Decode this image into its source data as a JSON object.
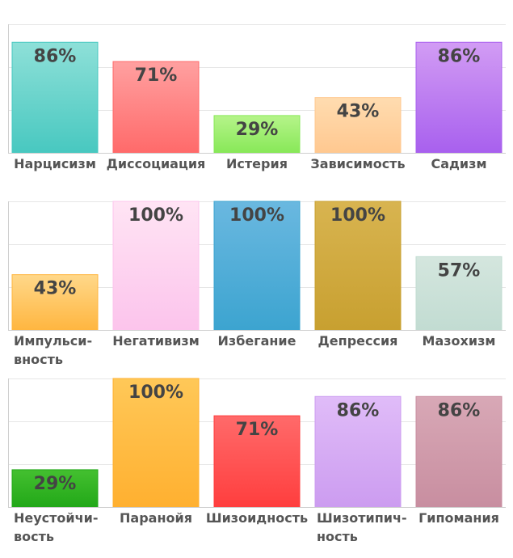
{
  "chart_data": [
    {
      "type": "bar",
      "categories": [
        "Нарцисизм",
        "Диссоциация",
        "Истерия",
        "Зависимость",
        "Садизм"
      ],
      "values": [
        86,
        71,
        29,
        43,
        86
      ],
      "labels": [
        "86%",
        "71%",
        "29%",
        "43%",
        "86%"
      ],
      "colors": [
        [
          "#8ee0d8",
          "#48c8c0"
        ],
        [
          "#ffa0a0",
          "#ff6a6a"
        ],
        [
          "#b6f48a",
          "#88e858"
        ],
        [
          "#ffdcb0",
          "#ffc890"
        ],
        [
          "#d29cf4",
          "#a860ee"
        ]
      ],
      "ylim": [
        0,
        100
      ],
      "grid": true
    },
    {
      "type": "bar",
      "categories": [
        "Импульси-вность",
        "Негативизм",
        "Избегание",
        "Депрессия",
        "Мазохизм"
      ],
      "values": [
        43,
        100,
        100,
        100,
        57
      ],
      "labels": [
        "43%",
        "100%",
        "100%",
        "100%",
        "57%"
      ],
      "colors": [
        [
          "#ffd88a",
          "#ffb640"
        ],
        [
          "#ffe4f4",
          "#fcc4ec"
        ],
        [
          "#6ab8e0",
          "#3ca4d0"
        ],
        [
          "#d8b450",
          "#c8a030"
        ],
        [
          "#d4e6de",
          "#c2dcd2"
        ]
      ],
      "ylim": [
        0,
        100
      ],
      "grid": true
    },
    {
      "type": "bar",
      "categories": [
        "Неустойчи-вость",
        "Паранойя",
        "Шизоидность",
        "Шизотипич-ность",
        "Гипомания"
      ],
      "values": [
        29,
        100,
        71,
        86,
        86
      ],
      "labels": [
        "29%",
        "100%",
        "71%",
        "86%",
        "86%"
      ],
      "colors": [
        [
          "#44c030",
          "#22a818"
        ],
        [
          "#ffc858",
          "#ffb030"
        ],
        [
          "#ff6a6a",
          "#ff3e3e"
        ],
        [
          "#e0bcf8",
          "#cc9cf0"
        ],
        [
          "#d8a8b6",
          "#c88ea0"
        ]
      ],
      "ylim": [
        0,
        100
      ],
      "grid": true
    }
  ]
}
